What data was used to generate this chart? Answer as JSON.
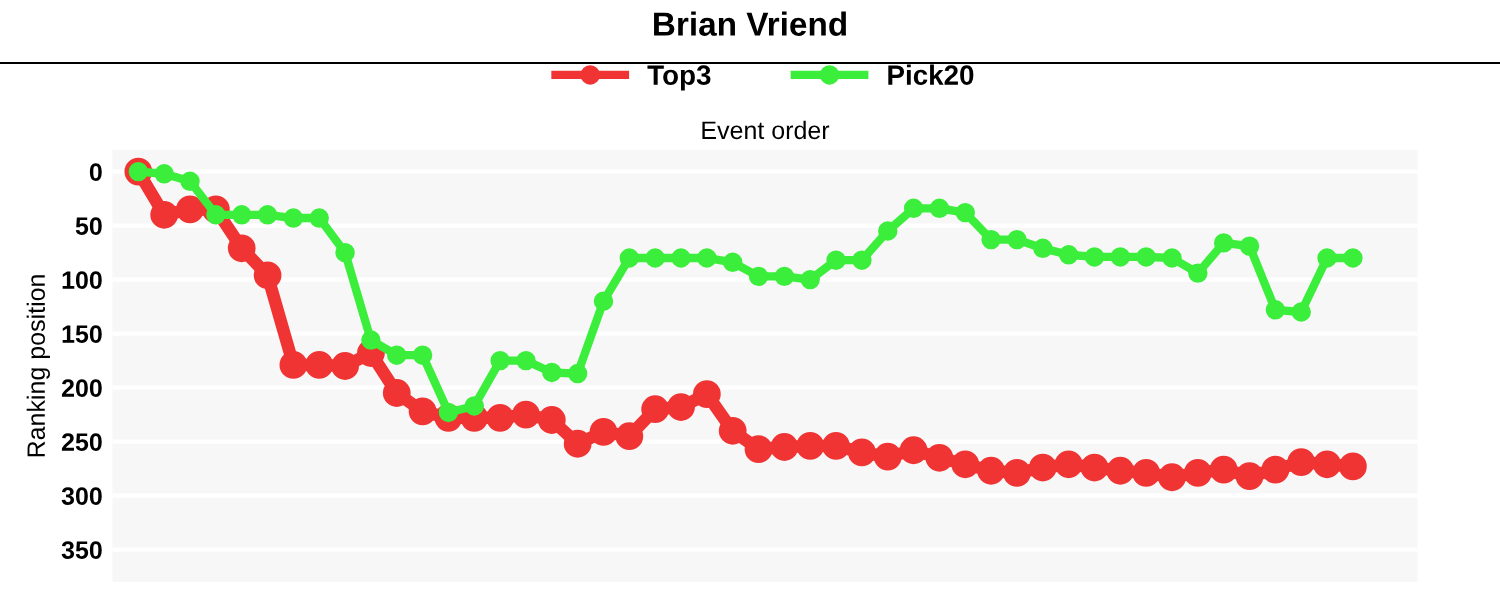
{
  "chart_data": {
    "type": "line",
    "title": "Brian Vriend",
    "xlabel": "Event order",
    "ylabel": "Ranking position",
    "categories": [
      null,
      null,
      null,
      null,
      null,
      null,
      null,
      null,
      null,
      null,
      null,
      null,
      null,
      null,
      null,
      null,
      null,
      null,
      null,
      null,
      null,
      null,
      null,
      null,
      null,
      null,
      null,
      null,
      null,
      null,
      null,
      null,
      null,
      null,
      null,
      null,
      null,
      null,
      null,
      null,
      null,
      null,
      null,
      null,
      null,
      null,
      null,
      null
    ],
    "series": [
      {
        "name": "Top3",
        "color": "#f03434",
        "values": [
          0,
          40,
          35,
          35,
          71,
          96,
          179,
          179,
          180,
          168,
          205,
          222,
          228,
          228,
          228,
          225,
          230,
          252,
          241,
          245,
          220,
          218,
          206,
          240,
          257,
          255,
          254,
          254,
          260,
          264,
          258,
          265,
          271,
          277,
          279,
          274,
          271,
          274,
          277,
          279,
          283,
          279,
          276,
          282,
          276,
          269,
          271,
          273
        ]
      },
      {
        "name": "Pick20",
        "color": "#3cee3c",
        "values": [
          0,
          2,
          9,
          40,
          40,
          40,
          43,
          43,
          75,
          156,
          170,
          170,
          223,
          217,
          175,
          175,
          186,
          187,
          120,
          80,
          80,
          80,
          80,
          84,
          97,
          97,
          100,
          82,
          82,
          55,
          34,
          34,
          38,
          63,
          63,
          71,
          77,
          79,
          79,
          79,
          80,
          94,
          66,
          69,
          128,
          130,
          80,
          80
        ]
      }
    ],
    "ylim": [
      380,
      -20
    ],
    "yticks": [
      0,
      50,
      100,
      150,
      200,
      250,
      300,
      350
    ],
    "tick_labels": "y",
    "grid": "y",
    "legend": "top",
    "marker": "circle",
    "line_style": "solid"
  }
}
